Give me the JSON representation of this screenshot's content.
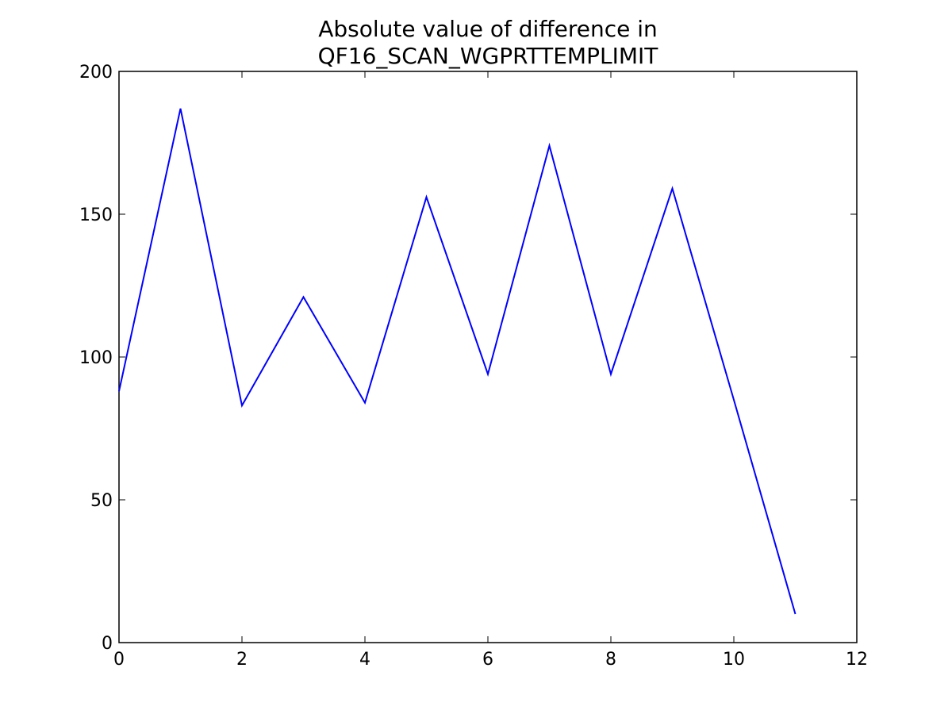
{
  "chart_data": {
    "type": "line",
    "title": [
      "Absolute value of difference in",
      "QF16_SCAN_WGPRTTEMPLIMIT"
    ],
    "x": [
      0,
      1,
      2,
      3,
      4,
      5,
      6,
      7,
      8,
      9,
      10,
      11
    ],
    "series": [
      {
        "color": "#0000ff",
        "values": [
          88,
          187,
          83,
          121,
          84,
          156,
          94,
          174,
          94,
          159,
          85,
          10
        ]
      }
    ],
    "xlim": [
      0,
      12
    ],
    "xticks": [
      0,
      2,
      4,
      6,
      8,
      10,
      12
    ],
    "ylim": [
      0,
      200
    ],
    "yticks": [
      0,
      50,
      100,
      150,
      200
    ],
    "grid": false
  }
}
